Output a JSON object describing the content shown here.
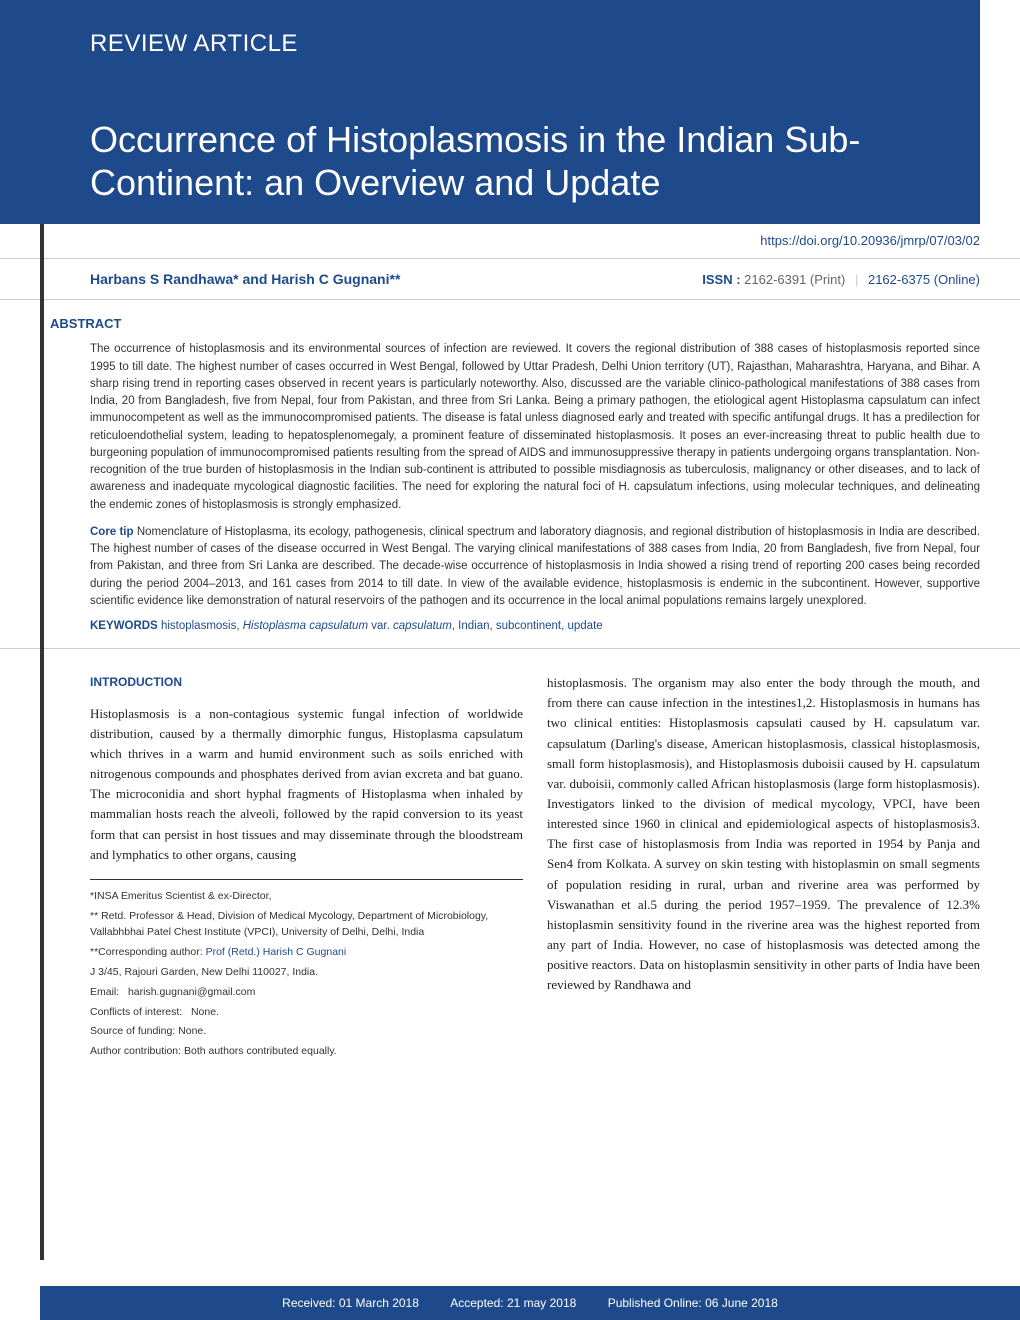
{
  "colors": {
    "primary": "#1e4a8c",
    "text": "#333333",
    "bg": "#ffffff",
    "divider": "#cccccc"
  },
  "header": {
    "article_type": "REVIEW ARTICLE",
    "title": "Occurrence of Histoplasmosis in the Indian Sub-Continent: an Overview and Update",
    "doi": "https://doi.org/10.20936/jmrp/07/03/02"
  },
  "authors": {
    "line": "Harbans S Randhawa* and Harish C Gugnani**",
    "issn_label": "ISSN :",
    "issn_print": "2162-6391 (Print)",
    "issn_online": "2162-6375 (Online)"
  },
  "abstract": {
    "heading": "ABSTRACT",
    "p1": "The occurrence of histoplasmosis and its environmental sources of infection are reviewed. It covers the regional distribution of 388 cases of histoplasmosis reported since 1995 to till date. The highest number of cases occurred in West Bengal, followed by Uttar Pradesh, Delhi Union territory (UT), Rajasthan, Maharashtra, Haryana, and Bihar. A sharp rising trend in reporting cases observed in recent years is particularly noteworthy. Also, discussed are the variable clinico-pathological manifestations of 388 cases from India, 20 from Bangladesh, five from Nepal, four from Pakistan, and three from Sri Lanka. Being a primary pathogen, the etiological agent Histoplasma capsulatum can infect immunocompetent as well as the immunocompromised patients. The disease is fatal unless diagnosed early and treated with specific antifungal drugs. It has a predilection for reticuloendothelial system, leading to hepatosplenomegaly, a prominent feature of disseminated histoplasmosis. It poses an ever-increasing threat to public health due to burgeoning population of immunocompromised patients resulting from the spread of AIDS and immunosuppressive therapy in patients undergoing organs transplantation. Non-recognition of the true burden of histoplasmosis in the Indian sub-continent is attributed to possible misdiagnosis as tuberculosis, malignancy or other diseases, and to lack of awareness and inadequate mycological diagnostic facilities. The need for exploring the natural foci of H. capsulatum infections, using molecular techniques, and delineating the endemic zones of histoplasmosis is strongly emphasized.",
    "core_tip_label": "Core tip",
    "p2": "Nomenclature of Histoplasma, its ecology, pathogenesis, clinical spectrum and laboratory diagnosis, and regional distribution of histoplasmosis in India are described. The highest number of cases of the disease occurred in West Bengal. The varying clinical manifestations of 388 cases from India, 20 from Bangladesh, five from Nepal, four from Pakistan, and three from Sri Lanka are described. The decade-wise occurrence of histoplasmosis in India showed a rising trend of reporting 200 cases being recorded during the period 2004–2013, and 161 cases from 2014 to till date. In view of the available evidence, histoplasmosis is endemic in the subcontinent. However, supportive scientific evidence like demonstration of natural reservoirs of the pathogen and its occurrence in the local animal populations remains largely unexplored.",
    "keywords_label": "KEYWORDS",
    "keywords_text": "histoplasmosis, Histoplasma capsulatum var. capsulatum, Indian, subcontinent, update"
  },
  "body": {
    "intro_heading": "INTRODUCTION",
    "col1": "Histoplasmosis is a non-contagious systemic fungal infection of worldwide distribution, caused by a thermally dimorphic fungus, Histoplasma capsulatum which thrives in a warm and humid environment such as soils enriched with nitrogenous compounds and phosphates derived from avian excreta and bat guano. The microconidia and short hyphal fragments of Histoplasma when inhaled by mammalian hosts reach the alveoli, followed by the rapid conversion to its yeast form that can persist in host tissues and may disseminate through the bloodstream and lymphatics to other organs, causing",
    "col2": "histoplasmosis. The organism may also enter the body through the mouth, and from there can cause infection in the intestines1,2. Histoplasmosis in humans has two clinical entities: Histoplasmosis capsulati caused by H. capsulatum var. capsulatum (Darling's disease, American histoplasmosis, classical histoplasmosis, small form histoplasmosis), and Histoplasmosis duboisii caused by H. capsulatum var. duboisii, commonly called African histoplasmosis (large form histoplasmosis). Investigators linked to the division of medical mycology, VPCI, have been interested since 1960 in clinical and epidemiological aspects of histoplasmosis3. The first case of histoplasmosis from India was reported in 1954 by Panja and Sen4 from Kolkata. A survey on skin testing with histoplasmin on small segments of population residing in rural, urban and riverine area was performed by Viswanathan et al.5 during the period 1957–1959. The prevalence of 12.3% histoplasmin sensitivity found in the riverine area was the highest reported from any part of India. However, no case of histoplasmosis was detected among the positive reactors. Data on histoplasmin sensitivity in other parts of India have been reviewed by Randhawa and"
  },
  "affiliations": {
    "a1": "*INSA Emeritus Scientist & ex-Director,",
    "a2": "** Retd. Professor & Head, Division of Medical Mycology, Department of Microbiology, Vallabhbhai Patel Chest Institute (VPCI), University of Delhi, Delhi, India",
    "corr_label": "**Corresponding author:",
    "corr_name": "Prof (Retd.) Harish C Gugnani",
    "addr": "J 3/45, Rajouri Garden, New Delhi 110027, India.",
    "email_label": "Email:",
    "email": "harish.gugnani@gmail.com",
    "coi_label": "Conflicts of interest:",
    "coi": "None.",
    "funding_label": "Source of funding:",
    "funding": "None.",
    "contrib_label": "Author contribution:",
    "contrib": "Both authors contributed equally."
  },
  "footer": {
    "received": "Received: 01 March 2018",
    "accepted": "Accepted: 21 may 2018",
    "published": "Published Online: 06 June 2018"
  }
}
